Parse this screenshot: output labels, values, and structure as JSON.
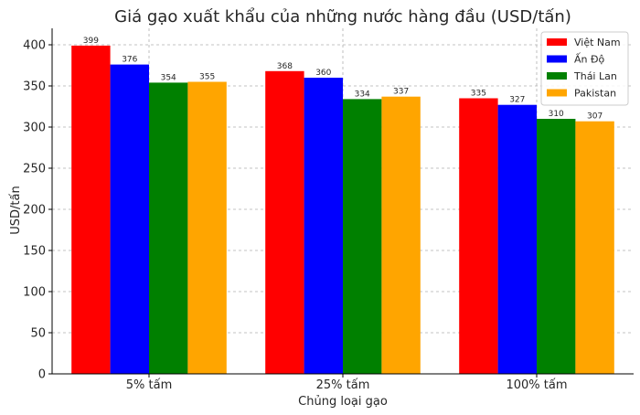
{
  "chart_data": {
    "type": "bar",
    "title": "Giá gạo xuất khẩu của những nước hàng đầu (USD/tấn)",
    "xlabel": "Chủng loại gạo",
    "ylabel": "USD/tấn",
    "ylim": [
      0,
      420
    ],
    "yticks": [
      0,
      50,
      100,
      150,
      200,
      250,
      300,
      350,
      400
    ],
    "categories": [
      "5% tấm",
      "25% tấm",
      "100% tấm"
    ],
    "grid": true,
    "legend_position": "top-right",
    "series": [
      {
        "name": "Việt Nam",
        "color": "#ff0000",
        "values": [
          399,
          368,
          335
        ]
      },
      {
        "name": "Ấn Độ",
        "color": "#0000ff",
        "values": [
          376,
          360,
          327
        ]
      },
      {
        "name": "Thái Lan",
        "color": "#008000",
        "values": [
          354,
          334,
          310
        ]
      },
      {
        "name": "Pakistan",
        "color": "#ffa500",
        "values": [
          355,
          337,
          307
        ]
      }
    ]
  }
}
